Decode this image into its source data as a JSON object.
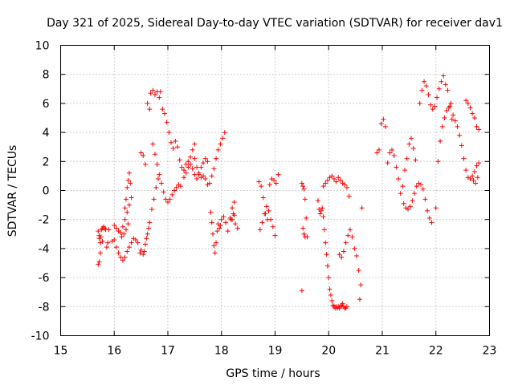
{
  "chart_data": {
    "type": "scatter",
    "title": "Day 321 of 2025, Sidereal Day-to-day VTEC variation (SDTVAR) for receiver dav1",
    "xlabel": "GPS time / hours",
    "ylabel": "SDTVAR / TECUs",
    "xlim": [
      15,
      23
    ],
    "ylim": [
      -10,
      10
    ],
    "x_ticks": [
      15,
      16,
      17,
      18,
      19,
      20,
      21,
      22,
      23
    ],
    "y_ticks": [
      -10,
      -8,
      -6,
      -4,
      -2,
      0,
      2,
      4,
      6,
      8,
      10
    ],
    "grid": true,
    "marker": "+",
    "color": "#ff0000",
    "series": [
      {
        "name": "dav1",
        "x": [
          15.7,
          15.72,
          15.74,
          15.76,
          15.78,
          15.8,
          15.82,
          15.84,
          15.86,
          15.88,
          15.9,
          15.7,
          15.72,
          15.75,
          15.78,
          15.72,
          15.74,
          15.96,
          16.0,
          16.04,
          16.08,
          16.12,
          16.16,
          16.2,
          16.24,
          16.28,
          16.32,
          16.36,
          16.4,
          16.44,
          16.48,
          16.0,
          16.04,
          16.08,
          16.12,
          16.16,
          16.2,
          16.24,
          16.28,
          16.14,
          16.18,
          16.22,
          16.26,
          16.2,
          16.22,
          16.24,
          16.26,
          16.28,
          16.3,
          16.32,
          16.5,
          16.54,
          16.58,
          16.62,
          16.66,
          16.5,
          16.54,
          16.56,
          16.58,
          16.6,
          16.62,
          16.64,
          16.66,
          16.68,
          16.72,
          16.76,
          16.8,
          16.84,
          16.86,
          16.7,
          16.74,
          16.78,
          16.82,
          16.72,
          16.76,
          16.8,
          16.84,
          16.88,
          16.92,
          16.96,
          17.0,
          17.04,
          17.08,
          17.12,
          17.16,
          17.2,
          17.24,
          16.9,
          16.94,
          16.98,
          17.02,
          17.06,
          17.1,
          17.14,
          17.18,
          17.22,
          17.26,
          17.3,
          17.34,
          17.38,
          17.42,
          17.46,
          17.5,
          17.3,
          17.34,
          17.38,
          17.42,
          17.46,
          17.5,
          17.54,
          17.58,
          17.62,
          17.66,
          17.7,
          17.74,
          17.5,
          17.54,
          17.58,
          17.62,
          17.66,
          17.7,
          17.74,
          17.78,
          17.82,
          17.86,
          17.9,
          17.94,
          17.98,
          18.02,
          18.06,
          17.8,
          17.82,
          17.84,
          17.86,
          17.88,
          17.9,
          17.92,
          17.94,
          17.96,
          17.98,
          18.0,
          18.04,
          18.08,
          18.12,
          18.16,
          18.2,
          18.24,
          18.18,
          18.22,
          18.26,
          18.3,
          18.2,
          18.24,
          18.7,
          18.74,
          18.78,
          18.82,
          18.86,
          18.9,
          18.94,
          18.98,
          19.02,
          19.06,
          18.72,
          18.76,
          18.8,
          18.84,
          18.88,
          18.92,
          18.96,
          19.0,
          19.5,
          19.52,
          19.54,
          19.56,
          19.58,
          19.6,
          19.52,
          19.54,
          19.56,
          19.5,
          19.8,
          19.82,
          19.84,
          19.86,
          19.88,
          19.9,
          19.92,
          19.94,
          19.96,
          19.98,
          20.0,
          20.02,
          20.04,
          20.06,
          20.08,
          20.1,
          20.12,
          20.14,
          20.16,
          20.18,
          20.2,
          20.22,
          20.24,
          20.26,
          20.28,
          20.3,
          20.32,
          20.34,
          19.9,
          19.94,
          19.98,
          20.02,
          20.06,
          20.1,
          20.14,
          20.18,
          20.22,
          20.26,
          20.3,
          20.34,
          20.38,
          20.2,
          20.24,
          20.28,
          20.32,
          20.36,
          20.4,
          20.44,
          20.48,
          20.52,
          20.56,
          20.6,
          20.58,
          20.62,
          20.9,
          20.94,
          20.98,
          21.02,
          21.06,
          21.1,
          21.14,
          21.18,
          21.22,
          21.26,
          21.3,
          21.34,
          21.38,
          21.42,
          21.46,
          21.5,
          21.54,
          21.58,
          21.62,
          21.4,
          21.44,
          21.48,
          21.52,
          21.56,
          21.6,
          21.64,
          21.68,
          21.72,
          21.76,
          21.8,
          21.84,
          21.88,
          21.92,
          21.7,
          21.74,
          21.78,
          21.82,
          21.86,
          21.9,
          21.94,
          21.98,
          22.02,
          22.06,
          22.1,
          22.14,
          22.18,
          22.22,
          22.26,
          22.3,
          22.0,
          22.04,
          22.08,
          22.12,
          22.16,
          22.2,
          22.24,
          22.28,
          22.32,
          22.36,
          22.4,
          22.44,
          22.48,
          22.52,
          22.56,
          22.6,
          22.64,
          22.68,
          22.72,
          22.76,
          22.8,
          22.56,
          22.6,
          22.64,
          22.68,
          22.72,
          22.76,
          22.8,
          22.7,
          22.74,
          22.78
        ],
        "y": [
          -5.1,
          -3.3,
          -3.6,
          -2.7,
          -2.6,
          -2.5,
          -2.6,
          -2.7,
          -3.9,
          -3.6,
          -2.7,
          -2.8,
          -3.1,
          -3.2,
          -3.5,
          -4.9,
          -4.3,
          -3.5,
          -3.4,
          -3.9,
          -4.3,
          -4.6,
          -4.8,
          -4.6,
          -4.2,
          -3.9,
          -3.6,
          -3.3,
          -3.4,
          -3.6,
          -4.3,
          -2.4,
          -2.6,
          -2.8,
          -2.9,
          -2.5,
          -2.0,
          -1.5,
          -1.0,
          -3.2,
          -3.0,
          -2.7,
          -2.3,
          -1.2,
          -0.6,
          0.2,
          0.7,
          1.2,
          0.5,
          -0.5,
          2.6,
          2.4,
          1.8,
          6.0,
          5.6,
          -4.1,
          -4.4,
          -4.2,
          -3.7,
          -3.3,
          -3.0,
          -2.6,
          -2.2,
          6.7,
          6.9,
          6.6,
          6.8,
          6.4,
          6.8,
          -1.3,
          -0.6,
          0.2,
          0.8,
          3.2,
          2.5,
          1.8,
          1.1,
          0.5,
          -0.1,
          -0.6,
          -0.8,
          -0.6,
          -0.3,
          0.0,
          0.2,
          0.4,
          0.3,
          5.6,
          5.3,
          4.7,
          4.0,
          3.3,
          2.9,
          3.4,
          3.0,
          2.1,
          1.6,
          1.4,
          1.8,
          2.0,
          2.3,
          2.8,
          3.2,
          0.9,
          1.2,
          1.6,
          1.8,
          1.5,
          1.1,
          0.8,
          1.2,
          1.6,
          1.9,
          2.2,
          2.0,
          2.2,
          1.6,
          1.1,
          0.9,
          1.0,
          0.8,
          0.4,
          0.5,
          1.0,
          1.5,
          2.2,
          2.8,
          3.2,
          3.6,
          4.0,
          -1.5,
          -2.2,
          -3.0,
          -3.8,
          -4.3,
          -3.6,
          -2.8,
          -2.3,
          -2.6,
          -2.4,
          -2.0,
          -1.8,
          -2.2,
          -2.8,
          -1.9,
          -1.2,
          -0.8,
          -2.0,
          -1.6,
          -2.3,
          -2.6,
          -2.0,
          -1.7,
          0.6,
          0.3,
          -0.5,
          -1.6,
          -2.0,
          0.4,
          0.8,
          0.7,
          0.5,
          1.1,
          -2.7,
          -2.2,
          -1.6,
          -1.1,
          -1.4,
          -2.0,
          -2.5,
          -3.1,
          0.5,
          0.3,
          0.1,
          -0.6,
          -1.9,
          -3.2,
          -2.6,
          -3.0,
          -3.2,
          -6.9,
          -0.7,
          -1.3,
          -1.6,
          -1.4,
          -1.2,
          -1.8,
          -2.7,
          -3.6,
          -4.4,
          -5.2,
          -6.0,
          -6.8,
          -7.2,
          -7.6,
          -7.9,
          -8.0,
          -8.1,
          -8.0,
          -8.1,
          -8.0,
          -8.1,
          -8.0,
          -7.9,
          -7.8,
          -8.0,
          -8.1,
          -8.1,
          -8.0,
          0.3,
          0.5,
          0.7,
          0.9,
          1.0,
          0.8,
          0.6,
          0.9,
          0.7,
          0.5,
          0.4,
          0.2,
          -0.4,
          -4.4,
          -4.6,
          -4.2,
          -3.6,
          -3.1,
          -2.7,
          -3.2,
          -4.0,
          -4.5,
          -5.5,
          -6.5,
          -7.5,
          -1.2,
          2.6,
          2.8,
          4.6,
          4.9,
          4.4,
          1.9,
          2.6,
          2.8,
          2.4,
          1.6,
          0.8,
          -0.2,
          0.3,
          1.4,
          2.2,
          3.2,
          3.6,
          2.9,
          2.1,
          -0.9,
          -1.2,
          -1.3,
          -1.1,
          -0.7,
          -0.2,
          0.3,
          0.5,
          0.4,
          0.1,
          -0.6,
          -1.4,
          -1.9,
          -2.2,
          6.0,
          6.9,
          7.5,
          7.2,
          6.6,
          5.9,
          5.6,
          5.8,
          6.4,
          7.0,
          7.5,
          7.9,
          7.3,
          6.9,
          5.8,
          4.9,
          -1.2,
          2.0,
          3.4,
          4.4,
          5.0,
          5.5,
          5.7,
          6.0,
          5.2,
          4.8,
          4.4,
          3.8,
          3.1,
          2.2,
          1.4,
          0.9,
          0.8,
          1.0,
          1.3,
          1.7,
          1.9,
          6.2,
          6.0,
          5.7,
          5.3,
          5.0,
          4.4,
          4.2,
          0.7,
          0.5,
          0.9
        ]
      }
    ]
  }
}
